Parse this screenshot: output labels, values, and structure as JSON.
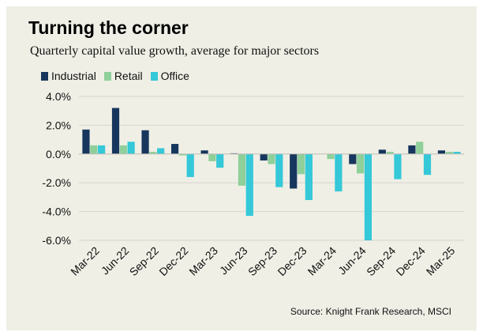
{
  "header": {
    "title": "Turning the corner",
    "subtitle": "Quarterly capital value growth, average for major sectors"
  },
  "footer": {
    "source": "Source: Knight Frank Research, MSCI"
  },
  "colors": {
    "background": "#efefe6",
    "Industrial": "#17365d",
    "Retail": "#8fcf9a",
    "Office": "#34c8d8"
  },
  "chart_data": {
    "type": "bar",
    "categories": [
      "Mar-22",
      "Jun-22",
      "Sep-22",
      "Dec-22",
      "Mar-23",
      "Jun-23",
      "Sep-23",
      "Dec-23",
      "Mar-24",
      "Jun-24",
      "Sep-24",
      "Dec-24",
      "Mar-25"
    ],
    "tick_labels": [
      "Mar-22",
      "Jun-22",
      "Sep-22",
      "Dec-22",
      "Mar-23",
      "Jun-23",
      "Sep-23",
      "Dec-23",
      "Mar-24",
      "Jun-24",
      "Sep-24",
      "Dec-24",
      "Mar-25"
    ],
    "series": [
      {
        "name": "Industrial",
        "values": [
          1.7,
          3.2,
          1.65,
          0.7,
          0.25,
          0.05,
          -0.45,
          -2.4,
          0.0,
          -0.7,
          0.3,
          0.6,
          0.25
        ]
      },
      {
        "name": "Retail",
        "values": [
          0.6,
          0.6,
          0.15,
          -0.1,
          -0.5,
          -2.2,
          -0.7,
          -1.4,
          -0.35,
          -1.35,
          0.15,
          0.85,
          0.15
        ]
      },
      {
        "name": "Office",
        "values": [
          0.6,
          0.85,
          0.4,
          -1.6,
          -0.95,
          -4.3,
          -2.3,
          -3.2,
          -2.6,
          -6.0,
          -1.75,
          -1.45,
          0.15
        ]
      }
    ],
    "y_ticks": [
      "4.0%",
      "2.0%",
      "0.0%",
      "-2.0%",
      "-4.0%",
      "-6.0%"
    ],
    "ylim": [
      -6,
      4
    ],
    "grid": true,
    "legend_position": "top-left"
  }
}
